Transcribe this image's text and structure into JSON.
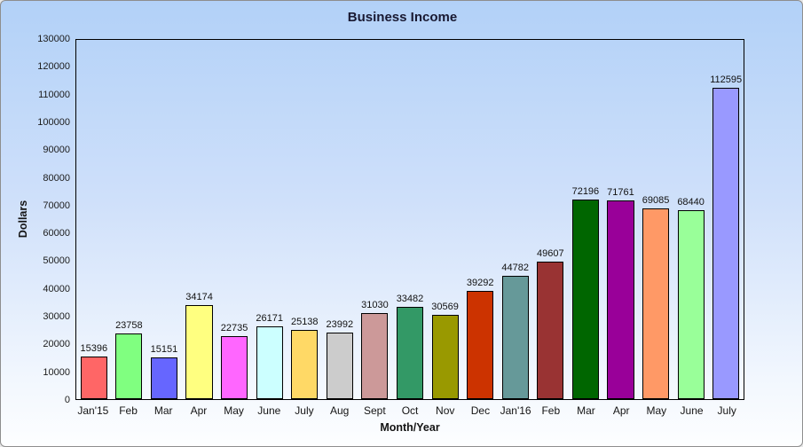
{
  "title": "Business Income",
  "colors": {
    "background_top": "#B2D1F8",
    "background_bottom": "#FDFEFF",
    "outer_border": "#8E8E8E",
    "plot_border": "#000000",
    "bar_outline": "#000000",
    "text": "#141414",
    "title_text": "#191932"
  },
  "chart_data": {
    "type": "bar",
    "title": "Business Income",
    "xlabel": "Month/Year",
    "ylabel": "Dollars",
    "ylim": [
      0,
      130000
    ],
    "ytick_step": 10000,
    "ytick_labels": [
      "0",
      "10000",
      "20000",
      "30000",
      "40000",
      "50000",
      "60000",
      "70000",
      "80000",
      "90000",
      "100000",
      "110000",
      "120000",
      "130000"
    ],
    "grid": false,
    "legend": null,
    "data_labels_shown": true,
    "categories": [
      "Jan'15",
      "Feb",
      "Mar",
      "Apr",
      "May",
      "June",
      "July",
      "Aug",
      "Sept",
      "Oct",
      "Nov",
      "Dec",
      "Jan'16",
      "Feb",
      "Mar",
      "Apr",
      "May",
      "June",
      "July"
    ],
    "values": [
      15396,
      23758,
      15151,
      34174,
      22735,
      26171,
      25138,
      23992,
      31030,
      33482,
      30569,
      39292,
      44782,
      49607,
      72196,
      71761,
      69085,
      68440,
      112595
    ],
    "bar_colors": [
      "#FF6666",
      "#80FF80",
      "#6666FF",
      "#FFFF80",
      "#FF66FF",
      "#CCFFFF",
      "#FFD966",
      "#CCCCCC",
      "#CC9999",
      "#339966",
      "#999900",
      "#CC3300",
      "#669999",
      "#993333",
      "#006600",
      "#990099",
      "#FF9966",
      "#99FF99",
      "#9999FF"
    ]
  }
}
